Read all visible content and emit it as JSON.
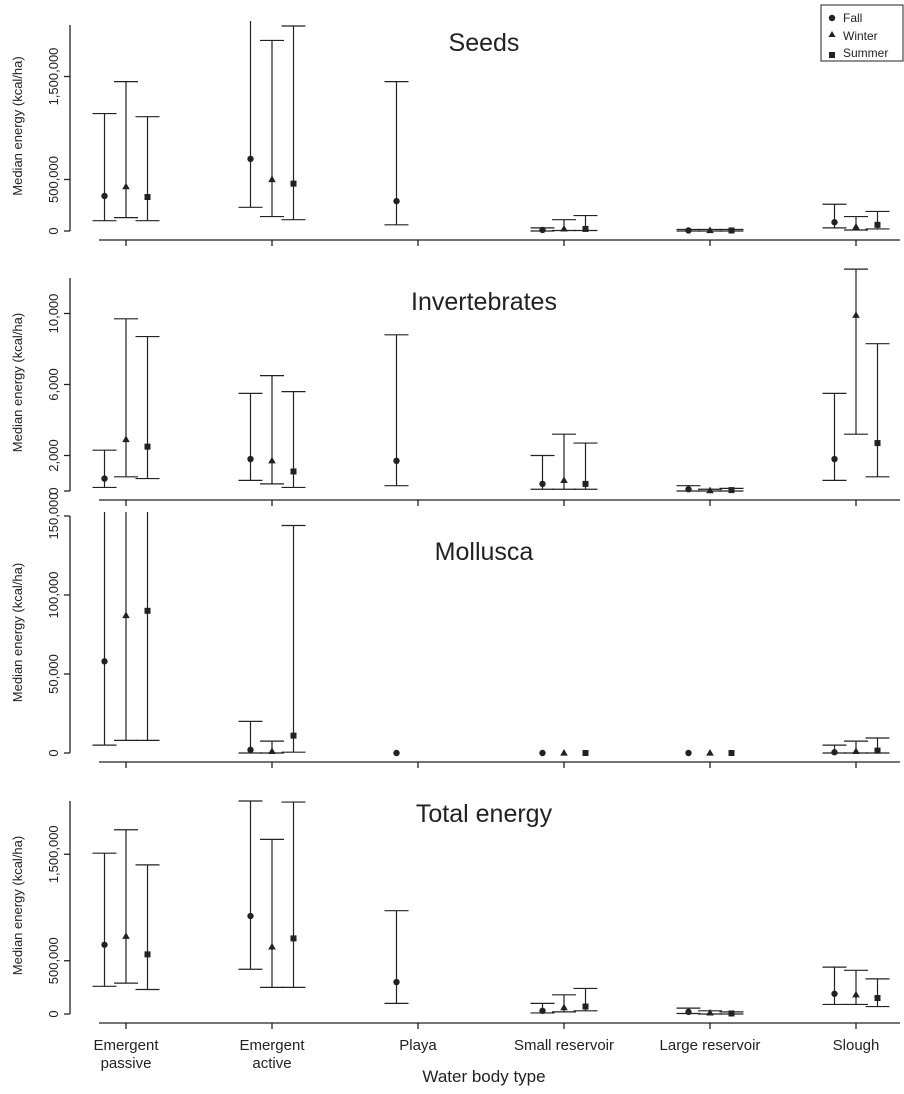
{
  "chart_data": {
    "type": "scatter",
    "xlabel": "Water body type",
    "categories": [
      "Emergent\npassive",
      "Emergent\nactive",
      "Playa",
      "Small reservoir",
      "Large reservoir",
      "Slough"
    ],
    "legend": {
      "position": "top-right",
      "entries": [
        {
          "name": "Fall",
          "marker": "circle"
        },
        {
          "name": "Winter",
          "marker": "triangle"
        },
        {
          "name": "Summer",
          "marker": "square"
        }
      ]
    },
    "panels": [
      {
        "title": "Seeds",
        "ylabel": "Median energy (kcal/ha)",
        "ylim": [
          0,
          2000000
        ],
        "yticks": [
          0,
          500000,
          1500000
        ],
        "ytick_labels": [
          "0",
          "500,000",
          "1,500,000"
        ],
        "series": [
          {
            "name": "Fall",
            "values": [
              340000,
              700000,
              290000,
              10000,
              5000,
              85000
            ],
            "low": [
              100000,
              230000,
              60000,
              0,
              0,
              30000
            ],
            "high": [
              1140000,
              2100000,
              1450000,
              30000,
              15000,
              260000
            ]
          },
          {
            "name": "Winter",
            "values": [
              430000,
              500000,
              null,
              20000,
              5000,
              40000
            ],
            "low": [
              130000,
              140000,
              null,
              5000,
              0,
              10000
            ],
            "high": [
              1450000,
              1850000,
              null,
              110000,
              15000,
              140000
            ]
          },
          {
            "name": "Summer",
            "values": [
              330000,
              460000,
              null,
              20000,
              5000,
              60000
            ],
            "low": [
              100000,
              110000,
              null,
              5000,
              0,
              20000
            ],
            "high": [
              1110000,
              1990000,
              null,
              150000,
              15000,
              190000
            ]
          }
        ]
      },
      {
        "title": "Invertebrates",
        "ylabel": "Median energy (kcal/ha)",
        "ylim": [
          0,
          12000
        ],
        "yticks": [
          0,
          2000,
          6000,
          10000
        ],
        "ytick_labels": [
          "0",
          "2,000",
          "6,000",
          "10,000"
        ],
        "series": [
          {
            "name": "Fall",
            "values": [
              700,
              1800,
              1700,
              400,
              100,
              1800
            ],
            "low": [
              200,
              600,
              300,
              100,
              0,
              600
            ],
            "high": [
              2300,
              5500,
              8800,
              2000,
              300,
              5500
            ]
          },
          {
            "name": "Winter",
            "values": [
              2900,
              1700,
              null,
              600,
              20,
              9900
            ],
            "low": [
              800,
              400,
              null,
              100,
              0,
              3200
            ],
            "high": [
              9700,
              6500,
              null,
              3200,
              100,
              12500
            ]
          },
          {
            "name": "Summer",
            "values": [
              2500,
              1100,
              null,
              400,
              50,
              2700
            ],
            "low": [
              700,
              200,
              null,
              100,
              0,
              800
            ],
            "high": [
              8700,
              5600,
              null,
              2700,
              150,
              8300
            ]
          }
        ]
      },
      {
        "title": "Mollusca",
        "ylabel": "Median energy (kcal/ha)",
        "ylim": [
          0,
          150000
        ],
        "yticks": [
          0,
          50000,
          100000,
          150000
        ],
        "ytick_labels": [
          "0",
          "50,000",
          "100,000",
          "150,000"
        ],
        "series": [
          {
            "name": "Fall",
            "values": [
              58000,
              2000,
              0,
              0,
              0,
              500
            ],
            "low": [
              5000,
              0,
              null,
              null,
              null,
              0
            ],
            "high": [
              165000,
              20000,
              null,
              null,
              null,
              5000
            ]
          },
          {
            "name": "Winter",
            "values": [
              87000,
              1000,
              null,
              0,
              0,
              1000
            ],
            "low": [
              8000,
              0,
              null,
              null,
              null,
              0
            ],
            "high": [
              165000,
              7500,
              null,
              null,
              null,
              7500
            ]
          },
          {
            "name": "Summer",
            "values": [
              90000,
              11000,
              null,
              0,
              0,
              1500
            ],
            "low": [
              8000,
              500,
              null,
              null,
              null,
              0
            ],
            "high": [
              165000,
              144000,
              null,
              null,
              null,
              9500
            ]
          }
        ]
      },
      {
        "title": "Total energy",
        "ylabel": "Median energy (kcal/ha)",
        "ylim": [
          0,
          2000000
        ],
        "yticks": [
          0,
          500000,
          1500000
        ],
        "ytick_labels": [
          "0",
          "500,000",
          "1,500,000"
        ],
        "series": [
          {
            "name": "Fall",
            "values": [
              650000,
              920000,
              300000,
              30000,
              20000,
              190000
            ],
            "low": [
              260000,
              420000,
              100000,
              10000,
              5000,
              90000
            ],
            "high": [
              1510000,
              2000000,
              970000,
              100000,
              55000,
              440000
            ]
          },
          {
            "name": "Winter",
            "values": [
              730000,
              630000,
              null,
              60000,
              10000,
              180000
            ],
            "low": [
              290000,
              250000,
              null,
              20000,
              0,
              90000
            ],
            "high": [
              1730000,
              1640000,
              null,
              180000,
              30000,
              410000
            ]
          },
          {
            "name": "Summer",
            "values": [
              560000,
              710000,
              null,
              70000,
              5000,
              150000
            ],
            "low": [
              230000,
              250000,
              null,
              30000,
              0,
              70000
            ],
            "high": [
              1400000,
              1990000,
              null,
              240000,
              20000,
              330000
            ]
          }
        ]
      }
    ]
  }
}
